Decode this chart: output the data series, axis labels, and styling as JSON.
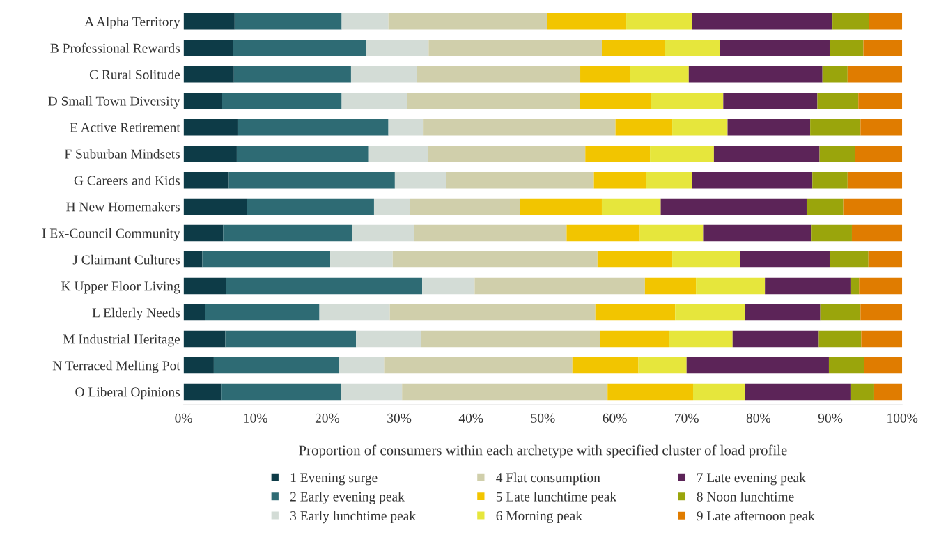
{
  "chart_data": {
    "type": "bar",
    "orientation": "horizontal",
    "stacked": true,
    "xlabel": "Proportion of consumers within each archetype with specified cluster of load profile",
    "categories": [
      "A Alpha Territory",
      "B Professional Rewards",
      "C Rural Solitude",
      "D Small Town Diversity",
      "E Active Retirement",
      "F Suburban Mindsets",
      "G Careers and Kids",
      "H New Homemakers",
      "I Ex-Council Community",
      "J Claimant Cultures",
      "K Upper Floor Living",
      "L Elderly Needs",
      "M Industrial Heritage",
      "N Terraced Melting Pot",
      "O Liberal Opinions"
    ],
    "series": [
      {
        "name": "1 Evening surge",
        "color": "#0d3b47",
        "values": [
          7.1,
          6.9,
          7.0,
          5.3,
          7.5,
          7.4,
          6.3,
          8.8,
          5.5,
          2.6,
          5.9,
          3.0,
          5.8,
          4.2,
          5.2
        ]
      },
      {
        "name": "2 Early evening peak",
        "color": "#2e6b74",
        "values": [
          14.9,
          18.5,
          16.3,
          16.7,
          21.0,
          18.4,
          23.1,
          17.7,
          18.0,
          17.8,
          27.3,
          15.9,
          18.2,
          17.4,
          16.7
        ]
      },
      {
        "name": "3 Early lunchtime peak",
        "color": "#d3dcd6",
        "values": [
          6.5,
          8.7,
          9.2,
          9.1,
          4.8,
          8.2,
          7.1,
          5.0,
          8.6,
          8.7,
          7.3,
          9.8,
          9.0,
          6.3,
          8.5
        ]
      },
      {
        "name": "4 Flat consumption",
        "color": "#d0cfab",
        "values": [
          22.1,
          24.1,
          22.7,
          24.0,
          26.8,
          21.9,
          20.6,
          15.3,
          21.2,
          28.5,
          23.7,
          28.6,
          25.0,
          26.2,
          28.6
        ]
      },
      {
        "name": "5 Late lunchtime peak",
        "color": "#f2c500",
        "values": [
          11.0,
          8.8,
          6.9,
          9.9,
          7.9,
          9.0,
          7.3,
          11.4,
          10.2,
          10.4,
          7.1,
          11.1,
          9.6,
          9.2,
          11.9
        ]
      },
      {
        "name": "6 Morning peak",
        "color": "#e6e63c",
        "values": [
          9.2,
          7.6,
          8.2,
          10.1,
          7.7,
          8.9,
          6.4,
          8.2,
          8.8,
          9.4,
          9.6,
          9.7,
          8.8,
          6.7,
          7.2
        ]
      },
      {
        "name": "7 Late evening peak",
        "color": "#5c2458",
        "values": [
          19.5,
          15.3,
          18.6,
          13.1,
          11.5,
          14.7,
          16.7,
          20.3,
          15.1,
          12.5,
          11.9,
          10.5,
          12.0,
          19.8,
          14.7
        ]
      },
      {
        "name": "8 Noon lunchtime",
        "color": "#9aa50c",
        "values": [
          5.1,
          4.7,
          3.5,
          5.7,
          7.0,
          4.9,
          4.9,
          5.1,
          5.6,
          5.4,
          1.2,
          5.6,
          5.9,
          4.9,
          3.3
        ]
      },
      {
        "name": "9 Late afternoon peak",
        "color": "#e07c00",
        "values": [
          4.6,
          5.4,
          7.6,
          6.1,
          5.8,
          6.6,
          7.6,
          8.2,
          7.0,
          4.7,
          6.0,
          5.8,
          5.7,
          5.3,
          3.9
        ]
      }
    ],
    "xlim": [
      0,
      100
    ],
    "xticks": [
      {
        "value": 0,
        "label": "0%"
      },
      {
        "value": 10,
        "label": "10%"
      },
      {
        "value": 20,
        "label": "20%"
      },
      {
        "value": 30,
        "label": "30%"
      },
      {
        "value": 40,
        "label": "40%"
      },
      {
        "value": 50,
        "label": "50%"
      },
      {
        "value": 60,
        "label": "60%"
      },
      {
        "value": 70,
        "label": "70%"
      },
      {
        "value": 80,
        "label": "80%"
      },
      {
        "value": 90,
        "label": "90%"
      },
      {
        "value": 100,
        "label": "100%"
      }
    ],
    "grid": false,
    "legend": "bottom"
  }
}
